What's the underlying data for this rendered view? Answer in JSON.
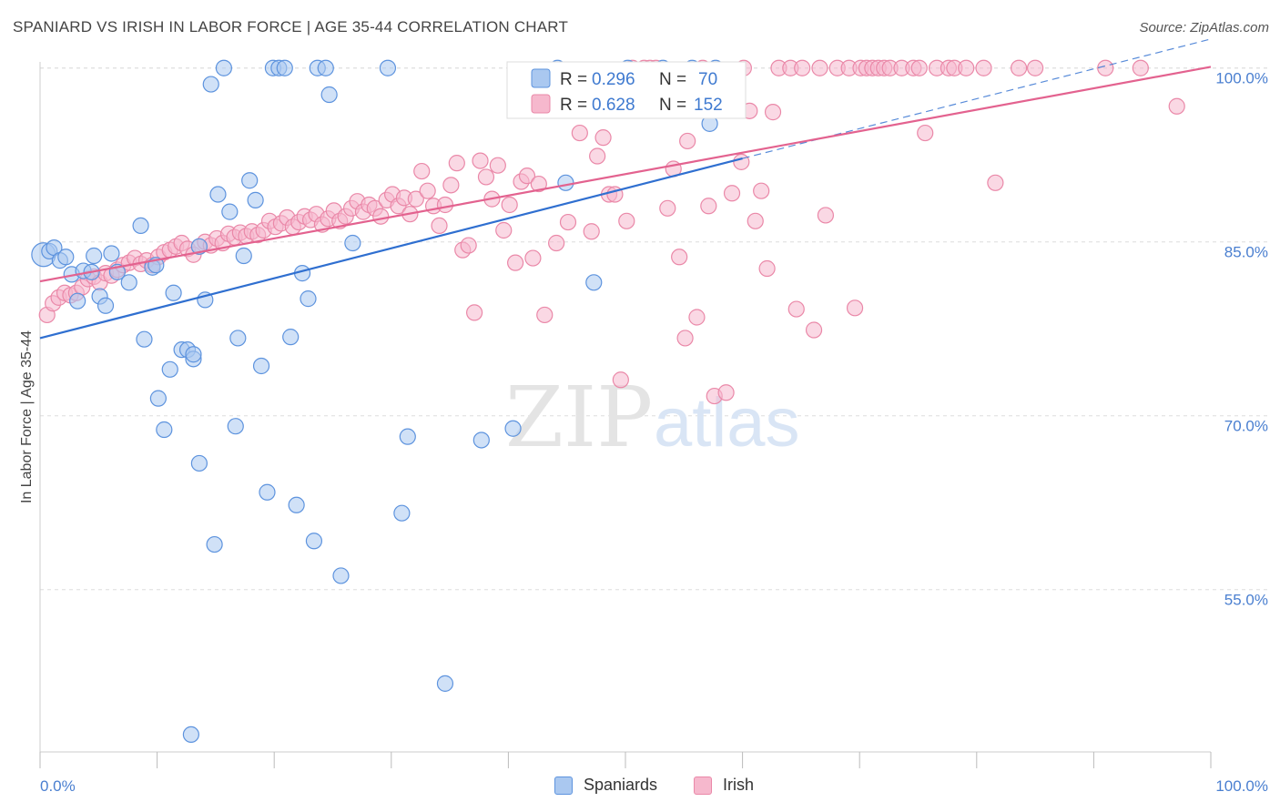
{
  "title": "SPANIARD VS IRISH IN LABOR FORCE | AGE 35-44 CORRELATION CHART",
  "source": "Source: ZipAtlas.com",
  "watermark": {
    "zip": "ZIP",
    "atlas": "atlas"
  },
  "colors": {
    "blue_fill": "#aac8f0",
    "blue_stroke": "#5d93de",
    "blue_line": "#2f6fd0",
    "pink_fill": "#f6b8cd",
    "pink_stroke": "#ea88a8",
    "pink_line": "#e3628f",
    "tick_text": "#4a7fd0",
    "grid": "#dddddd"
  },
  "legend": {
    "spaniards": {
      "r_label": "R = ",
      "r_value": "0.296",
      "n_label": "N = ",
      "n_value": "70"
    },
    "irish": {
      "r_label": "R = ",
      "r_value": "0.628",
      "n_label": "N = ",
      "n_value": "152"
    }
  },
  "bottom_legend": [
    "Spaniards",
    "Irish"
  ],
  "chart_data": {
    "type": "scatter",
    "title": "SPANIARD VS IRISH IN LABOR FORCE | AGE 35-44 CORRELATION CHART",
    "xlabel": "",
    "ylabel": "In Labor Force | Age 35-44",
    "xlim": [
      0,
      100
    ],
    "ylim": [
      41,
      101
    ],
    "x_tick_labels": [
      "0.0%",
      "100.0%"
    ],
    "y_ticks": [
      55,
      70,
      85,
      100
    ],
    "y_tick_labels": [
      "55.0%",
      "70.0%",
      "85.0%",
      "100.0%"
    ],
    "series": [
      {
        "name": "Spaniards",
        "r": 0.296,
        "n": 70,
        "trend": {
          "x": [
            0,
            60
          ],
          "y": [
            76.7,
            92.2
          ]
        },
        "trend_dashed": {
          "x": [
            60,
            100
          ],
          "y": [
            92.2,
            102.5
          ]
        },
        "points": [
          [
            0.3,
            83.9
          ],
          [
            0.8,
            84.2
          ],
          [
            1.2,
            84.5
          ],
          [
            1.7,
            83.4
          ],
          [
            2.2,
            83.7
          ],
          [
            2.7,
            82.2
          ],
          [
            3.2,
            79.9
          ],
          [
            3.7,
            82.5
          ],
          [
            4.4,
            82.4
          ],
          [
            4.6,
            83.8
          ],
          [
            5.1,
            80.3
          ],
          [
            5.6,
            79.5
          ],
          [
            6.1,
            84.0
          ],
          [
            6.6,
            82.4
          ],
          [
            7.6,
            81.5
          ],
          [
            8.6,
            86.4
          ],
          [
            8.9,
            76.6
          ],
          [
            9.6,
            82.8
          ],
          [
            9.9,
            83.0
          ],
          [
            10.1,
            71.5
          ],
          [
            10.6,
            68.8
          ],
          [
            11.1,
            74.0
          ],
          [
            11.4,
            80.6
          ],
          [
            12.1,
            75.7
          ],
          [
            12.6,
            75.7
          ],
          [
            13.1,
            74.9
          ],
          [
            13.6,
            84.6
          ],
          [
            13.1,
            75.3
          ],
          [
            12.9,
            42.5
          ],
          [
            13.6,
            65.9
          ],
          [
            14.1,
            80.0
          ],
          [
            14.6,
            98.6
          ],
          [
            14.9,
            58.9
          ],
          [
            15.2,
            89.1
          ],
          [
            15.7,
            100.0
          ],
          [
            16.2,
            87.6
          ],
          [
            16.7,
            69.1
          ],
          [
            16.9,
            76.7
          ],
          [
            17.4,
            83.8
          ],
          [
            17.9,
            90.3
          ],
          [
            18.4,
            88.6
          ],
          [
            18.9,
            74.3
          ],
          [
            19.4,
            63.4
          ],
          [
            19.9,
            100.0
          ],
          [
            20.4,
            100.0
          ],
          [
            20.9,
            100.0
          ],
          [
            21.4,
            76.8
          ],
          [
            21.9,
            62.3
          ],
          [
            22.4,
            82.3
          ],
          [
            22.9,
            80.1
          ],
          [
            23.4,
            59.2
          ],
          [
            23.7,
            100.0
          ],
          [
            24.4,
            100.0
          ],
          [
            24.7,
            97.7
          ],
          [
            25.7,
            56.2
          ],
          [
            26.7,
            84.9
          ],
          [
            29.7,
            100.0
          ],
          [
            30.9,
            61.6
          ],
          [
            31.4,
            68.2
          ],
          [
            34.6,
            46.9
          ],
          [
            37.7,
            67.9
          ],
          [
            40.4,
            68.9
          ],
          [
            44.2,
            100.0
          ],
          [
            44.9,
            90.1
          ],
          [
            47.3,
            81.5
          ],
          [
            50.2,
            100.0
          ],
          [
            53.2,
            100.0
          ],
          [
            57.7,
            100.0
          ],
          [
            57.2,
            95.2
          ],
          [
            55.7,
            100.0
          ]
        ]
      },
      {
        "name": "Irish",
        "r": 0.628,
        "n": 152,
        "trend": {
          "x": [
            0,
            100
          ],
          "y": [
            81.6,
            100.1
          ]
        },
        "points": [
          [
            0.6,
            78.7
          ],
          [
            1.1,
            79.7
          ],
          [
            1.6,
            80.2
          ],
          [
            2.1,
            80.6
          ],
          [
            2.6,
            80.4
          ],
          [
            3.1,
            80.6
          ],
          [
            3.6,
            81.1
          ],
          [
            4.1,
            81.8
          ],
          [
            4.6,
            82.0
          ],
          [
            5.1,
            81.5
          ],
          [
            5.6,
            82.3
          ],
          [
            6.1,
            82.1
          ],
          [
            6.6,
            82.6
          ],
          [
            7.1,
            83.0
          ],
          [
            7.6,
            83.2
          ],
          [
            8.1,
            83.6
          ],
          [
            8.6,
            83.1
          ],
          [
            9.1,
            83.4
          ],
          [
            9.6,
            83.0
          ],
          [
            10.1,
            83.7
          ],
          [
            10.6,
            84.1
          ],
          [
            11.1,
            84.3
          ],
          [
            11.6,
            84.6
          ],
          [
            12.1,
            84.9
          ],
          [
            12.6,
            84.4
          ],
          [
            13.1,
            83.9
          ],
          [
            13.6,
            84.6
          ],
          [
            14.1,
            85.0
          ],
          [
            14.6,
            84.7
          ],
          [
            15.1,
            85.3
          ],
          [
            15.6,
            84.9
          ],
          [
            16.1,
            85.7
          ],
          [
            16.6,
            85.4
          ],
          [
            17.1,
            85.8
          ],
          [
            17.6,
            85.5
          ],
          [
            18.1,
            85.9
          ],
          [
            18.6,
            85.6
          ],
          [
            19.1,
            86.0
          ],
          [
            19.6,
            86.8
          ],
          [
            20.1,
            86.3
          ],
          [
            20.6,
            86.6
          ],
          [
            21.1,
            87.1
          ],
          [
            21.6,
            86.3
          ],
          [
            22.1,
            86.7
          ],
          [
            22.6,
            87.2
          ],
          [
            23.1,
            86.9
          ],
          [
            23.6,
            87.4
          ],
          [
            24.1,
            86.5
          ],
          [
            24.6,
            87.0
          ],
          [
            25.1,
            87.7
          ],
          [
            25.6,
            86.8
          ],
          [
            26.1,
            87.2
          ],
          [
            26.6,
            87.9
          ],
          [
            27.1,
            88.5
          ],
          [
            27.6,
            87.6
          ],
          [
            28.1,
            88.2
          ],
          [
            28.6,
            87.9
          ],
          [
            29.1,
            87.2
          ],
          [
            29.6,
            88.6
          ],
          [
            30.1,
            89.1
          ],
          [
            30.6,
            88.1
          ],
          [
            31.1,
            88.8
          ],
          [
            31.6,
            87.4
          ],
          [
            32.1,
            88.7
          ],
          [
            32.6,
            91.1
          ],
          [
            33.1,
            89.4
          ],
          [
            33.6,
            88.1
          ],
          [
            34.1,
            86.4
          ],
          [
            34.6,
            88.2
          ],
          [
            35.1,
            89.9
          ],
          [
            35.6,
            91.8
          ],
          [
            36.1,
            84.3
          ],
          [
            36.6,
            84.7
          ],
          [
            37.1,
            78.9
          ],
          [
            37.6,
            92.0
          ],
          [
            38.1,
            90.6
          ],
          [
            38.6,
            88.7
          ],
          [
            39.1,
            91.6
          ],
          [
            39.6,
            86.0
          ],
          [
            40.1,
            88.2
          ],
          [
            40.6,
            83.2
          ],
          [
            41.1,
            90.2
          ],
          [
            41.6,
            90.7
          ],
          [
            42.1,
            83.6
          ],
          [
            42.6,
            90.0
          ],
          [
            43.1,
            78.7
          ],
          [
            44.1,
            84.9
          ],
          [
            45.1,
            86.7
          ],
          [
            46.1,
            94.4
          ],
          [
            47.1,
            85.9
          ],
          [
            47.6,
            92.4
          ],
          [
            48.1,
            94.0
          ],
          [
            48.6,
            89.1
          ],
          [
            49.1,
            89.1
          ],
          [
            49.6,
            73.1
          ],
          [
            50.1,
            86.8
          ],
          [
            50.6,
            100.0
          ],
          [
            51.6,
            100.0
          ],
          [
            52.1,
            100.0
          ],
          [
            52.6,
            100.0
          ],
          [
            53.1,
            97.3
          ],
          [
            53.6,
            87.9
          ],
          [
            54.1,
            91.3
          ],
          [
            54.6,
            83.7
          ],
          [
            55.1,
            76.7
          ],
          [
            55.6,
            96.8
          ],
          [
            56.1,
            78.5
          ],
          [
            56.6,
            100.0
          ],
          [
            57.1,
            88.1
          ],
          [
            57.6,
            71.7
          ],
          [
            58.6,
            72.0
          ],
          [
            58.9,
            96.4
          ],
          [
            59.1,
            89.2
          ],
          [
            60.1,
            100.0
          ],
          [
            60.6,
            96.3
          ],
          [
            61.1,
            86.8
          ],
          [
            61.6,
            89.4
          ],
          [
            62.1,
            82.7
          ],
          [
            62.6,
            96.2
          ],
          [
            63.1,
            100.0
          ],
          [
            64.1,
            100.0
          ],
          [
            64.6,
            79.2
          ],
          [
            65.1,
            100.0
          ],
          [
            66.1,
            77.4
          ],
          [
            66.6,
            100.0
          ],
          [
            67.1,
            87.3
          ],
          [
            68.1,
            100.0
          ],
          [
            69.1,
            100.0
          ],
          [
            69.6,
            79.3
          ],
          [
            70.1,
            100.0
          ],
          [
            70.6,
            100.0
          ],
          [
            71.1,
            100.0
          ],
          [
            71.6,
            100.0
          ],
          [
            72.1,
            100.0
          ],
          [
            72.6,
            100.0
          ],
          [
            73.6,
            100.0
          ],
          [
            74.6,
            100.0
          ],
          [
            75.1,
            100.0
          ],
          [
            75.6,
            94.4
          ],
          [
            76.6,
            100.0
          ],
          [
            77.6,
            100.0
          ],
          [
            78.1,
            100.0
          ],
          [
            79.1,
            100.0
          ],
          [
            80.6,
            100.0
          ],
          [
            81.6,
            90.1
          ],
          [
            83.6,
            100.0
          ],
          [
            85.0,
            100.0
          ],
          [
            91.0,
            100.0
          ],
          [
            94.0,
            100.0
          ],
          [
            97.1,
            96.7
          ],
          [
            55.3,
            93.7
          ],
          [
            59.9,
            91.9
          ]
        ]
      }
    ]
  }
}
